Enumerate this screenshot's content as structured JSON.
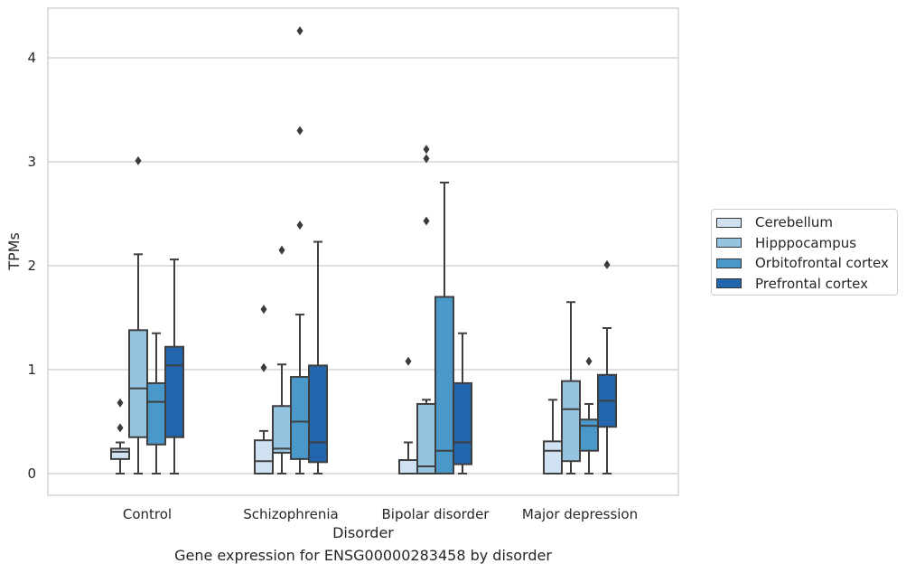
{
  "chart_data": {
    "type": "boxplot",
    "title": "",
    "caption": "Gene expression for ENSG00000283458 by disorder",
    "xlabel": "Disorder",
    "ylabel": "TPMs",
    "ylim": [
      -0.2,
      4.5
    ],
    "yticks": [
      0,
      1,
      2,
      3,
      4
    ],
    "grid": "horizontal",
    "legend_position": "right",
    "categories": [
      "Control",
      "Schizophrenia",
      "Bipolar disorder",
      "Major depression"
    ],
    "series": [
      {
        "name": "Cerebellum",
        "color": "#d0e1f2",
        "boxes": [
          {
            "whisker_low": 0.0,
            "q1": 0.14,
            "median": 0.21,
            "q3": 0.24,
            "whisker_high": 0.3,
            "outliers": [
              0.44,
              0.68
            ]
          },
          {
            "whisker_low": 0.0,
            "q1": 0.0,
            "median": 0.12,
            "q3": 0.32,
            "whisker_high": 0.41,
            "outliers": [
              1.02,
              1.58
            ]
          },
          {
            "whisker_low": 0.0,
            "q1": 0.0,
            "median": 0.0,
            "q3": 0.13,
            "whisker_high": 0.3,
            "outliers": [
              1.08
            ]
          },
          {
            "whisker_low": 0.0,
            "q1": 0.0,
            "median": 0.22,
            "q3": 0.31,
            "whisker_high": 0.71,
            "outliers": []
          }
        ]
      },
      {
        "name": "Hipppocampus",
        "color": "#94c4df",
        "boxes": [
          {
            "whisker_low": 0.0,
            "q1": 0.35,
            "median": 0.82,
            "q3": 1.38,
            "whisker_high": 2.11,
            "outliers": [
              3.01
            ]
          },
          {
            "whisker_low": 0.0,
            "q1": 0.2,
            "median": 0.24,
            "q3": 0.65,
            "whisker_high": 1.05,
            "outliers": [
              2.15
            ]
          },
          {
            "whisker_low": 0.0,
            "q1": 0.0,
            "median": 0.07,
            "q3": 0.67,
            "whisker_high": 0.71,
            "outliers": [
              2.43,
              3.03,
              3.12
            ]
          },
          {
            "whisker_low": 0.0,
            "q1": 0.12,
            "median": 0.62,
            "q3": 0.89,
            "whisker_high": 1.65,
            "outliers": []
          }
        ]
      },
      {
        "name": "Orbitofrontal cortex",
        "color": "#4a98c9",
        "boxes": [
          {
            "whisker_low": 0.0,
            "q1": 0.28,
            "median": 0.69,
            "q3": 0.87,
            "whisker_high": 1.35,
            "outliers": []
          },
          {
            "whisker_low": 0.0,
            "q1": 0.14,
            "median": 0.5,
            "q3": 0.93,
            "whisker_high": 1.53,
            "outliers": [
              2.39,
              3.3,
              4.26
            ]
          },
          {
            "whisker_low": 0.0,
            "q1": 0.0,
            "median": 0.22,
            "q3": 1.7,
            "whisker_high": 2.8,
            "outliers": []
          },
          {
            "whisker_low": 0.0,
            "q1": 0.22,
            "median": 0.46,
            "q3": 0.52,
            "whisker_high": 0.67,
            "outliers": [
              1.08
            ]
          }
        ]
      },
      {
        "name": "Prefrontal cortex",
        "color": "#2166ac",
        "boxes": [
          {
            "whisker_low": 0.0,
            "q1": 0.35,
            "median": 1.04,
            "q3": 1.22,
            "whisker_high": 2.06,
            "outliers": []
          },
          {
            "whisker_low": 0.0,
            "q1": 0.11,
            "median": 0.3,
            "q3": 1.04,
            "whisker_high": 2.23,
            "outliers": []
          },
          {
            "whisker_low": 0.0,
            "q1": 0.09,
            "median": 0.3,
            "q3": 0.87,
            "whisker_high": 1.35,
            "outliers": []
          },
          {
            "whisker_low": 0.0,
            "q1": 0.45,
            "median": 0.7,
            "q3": 0.95,
            "whisker_high": 1.4,
            "outliers": [
              2.01
            ]
          }
        ]
      }
    ]
  }
}
